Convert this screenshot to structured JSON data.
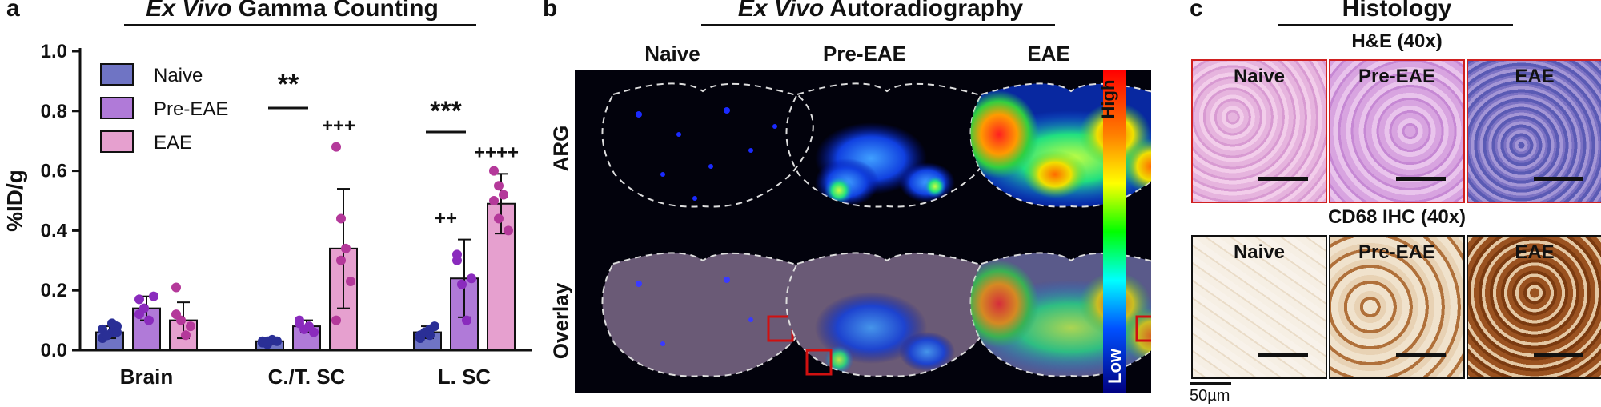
{
  "panel_a": {
    "letter": "a",
    "title_italic": "Ex Vivo",
    "title_rest": " Gamma Counting"
  },
  "panel_b": {
    "letter": "b",
    "title_italic": "Ex Vivo",
    "title_rest": " Autoradiography",
    "columns": [
      "Naive",
      "Pre-EAE",
      "EAE"
    ],
    "rows": [
      "ARG",
      "Overlay"
    ],
    "colorbar_high": "High",
    "colorbar_low": "Low"
  },
  "panel_c": {
    "letter": "c",
    "title": "Histology",
    "he_title": "H&E (40x)",
    "cd68_title": "CD68 IHC (40x)",
    "tiles": [
      "Naive",
      "Pre-EAE",
      "EAE"
    ],
    "scale_label": "50µm"
  },
  "chart_data": {
    "type": "bar",
    "ylabel": "%ID/g",
    "ylim": [
      0,
      1.0
    ],
    "yticks": [
      "0.0",
      "0.2",
      "0.4",
      "0.6",
      "0.8",
      "1.0"
    ],
    "categories": [
      "Brain",
      "C./T. SC",
      "L. SC"
    ],
    "series": [
      {
        "name": "Naive",
        "color": "#6f74c4",
        "dot": "#2a2f96",
        "values": [
          0.06,
          0.03,
          0.06
        ],
        "errors": [
          0.02,
          0.008,
          0.02
        ],
        "points": [
          [
            0.04,
            0.05,
            0.06,
            0.08,
            0.07,
            0.05,
            0.09,
            0.06
          ],
          [
            0.03,
            0.02,
            0.035,
            0.03,
            0.025,
            0.03
          ],
          [
            0.05,
            0.06,
            0.07,
            0.08,
            0.04,
            0.06,
            0.05
          ]
        ]
      },
      {
        "name": "Pre-EAE",
        "color": "#b07ad8",
        "dot": "#8a2bbd",
        "values": [
          0.14,
          0.08,
          0.24
        ],
        "errors": [
          0.04,
          0.02,
          0.13
        ],
        "points": [
          [
            0.17,
            0.14,
            0.1,
            0.18,
            0.12
          ],
          [
            0.1,
            0.07,
            0.08,
            0.06,
            0.09
          ],
          [
            0.3,
            0.22,
            0.1,
            0.24,
            0.32
          ]
        ]
      },
      {
        "name": "EAE",
        "color": "#e6a0cf",
        "dot": "#b4399a",
        "values": [
          0.1,
          0.34,
          0.49
        ],
        "errors": [
          0.06,
          0.2,
          0.1
        ],
        "points": [
          [
            0.21,
            0.1,
            0.05,
            0.08,
            0.12
          ],
          [
            0.68,
            0.44,
            0.34,
            0.23,
            0.1,
            0.3
          ],
          [
            0.6,
            0.55,
            0.52,
            0.4,
            0.5,
            0.44
          ]
        ]
      }
    ],
    "annotations": [
      {
        "text": "**",
        "category": "C./T. SC",
        "y": 0.86,
        "line": 0.81
      },
      {
        "text": "+++",
        "category": "C./T. SC",
        "y": 0.73
      },
      {
        "text": "***",
        "category": "L. SC",
        "y": 0.77,
        "line": 0.73
      },
      {
        "text": "++",
        "category": "L. SC",
        "y": 0.42
      },
      {
        "text": "++++",
        "category": "L. SC",
        "y": 0.64
      }
    ]
  }
}
